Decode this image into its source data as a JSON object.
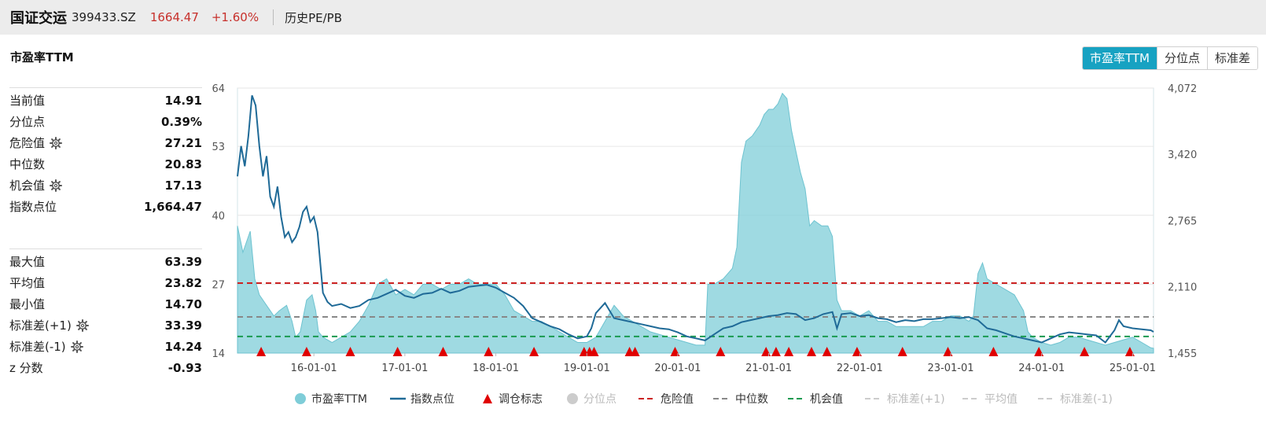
{
  "header": {
    "name": "国证交运",
    "code": "399433.SZ",
    "price": "1664.47",
    "change": "+1.60%",
    "section": "历史PE/PB"
  },
  "subtitle": "市盈率TTM",
  "tabs": [
    {
      "label": "市盈率TTM",
      "active": true
    },
    {
      "label": "分位点",
      "active": false
    },
    {
      "label": "标准差",
      "active": false
    }
  ],
  "stats_top": [
    {
      "label": "当前值",
      "value": "14.91",
      "gear": false
    },
    {
      "label": "分位点",
      "value": "0.39%",
      "gear": false
    },
    {
      "label": "危险值",
      "value": "27.21",
      "gear": true
    },
    {
      "label": "中位数",
      "value": "20.83",
      "gear": false
    },
    {
      "label": "机会值",
      "value": "17.13",
      "gear": true
    },
    {
      "label": "指数点位",
      "value": "1,664.47",
      "gear": false
    }
  ],
  "stats_bottom": [
    {
      "label": "最大值",
      "value": "63.39",
      "gear": false
    },
    {
      "label": "平均值",
      "value": "23.82",
      "gear": false
    },
    {
      "label": "最小值",
      "value": "14.70",
      "gear": false
    },
    {
      "label": "标准差(+1)",
      "value": "33.39",
      "gear": true
    },
    {
      "label": "标准差(-1)",
      "value": "14.24",
      "gear": true
    },
    {
      "label": "z 分数",
      "value": "-0.93",
      "gear": false
    }
  ],
  "legend": [
    {
      "label": "市盈率TTM",
      "kind": "circle",
      "color": "#7fcdd8",
      "dim": false
    },
    {
      "label": "指数点位",
      "kind": "line",
      "color": "#1f6a97",
      "dim": false
    },
    {
      "label": "调仓标志",
      "kind": "triangle",
      "color": "#e00000",
      "dim": false
    },
    {
      "label": "分位点",
      "kind": "circle",
      "color": "#cccccc",
      "dim": true
    },
    {
      "label": "危险值",
      "kind": "dash",
      "color": "#cc2222",
      "dim": false
    },
    {
      "label": "中位数",
      "kind": "dash",
      "color": "#888888",
      "dim": false
    },
    {
      "label": "机会值",
      "kind": "dash",
      "color": "#1a9a50",
      "dim": false
    },
    {
      "label": "标准差(+1)",
      "kind": "dash",
      "color": "#cccccc",
      "dim": true
    },
    {
      "label": "平均值",
      "kind": "dash",
      "color": "#cccccc",
      "dim": true
    },
    {
      "label": "标准差(-1)",
      "kind": "dash",
      "color": "#cccccc",
      "dim": true
    }
  ],
  "chart_data": {
    "type": "area",
    "x_range": [
      2015.16,
      2025.23
    ],
    "x_ticks": [
      {
        "label": "16-01-01",
        "x": 2016.0
      },
      {
        "label": "17-01-01",
        "x": 2017.0
      },
      {
        "label": "18-01-01",
        "x": 2018.0
      },
      {
        "label": "19-01-01",
        "x": 2019.0
      },
      {
        "label": "20-01-01",
        "x": 2020.0
      },
      {
        "label": "21-01-01",
        "x": 2021.0
      },
      {
        "label": "22-01-01",
        "x": 2022.0
      },
      {
        "label": "23-01-01",
        "x": 2023.0
      },
      {
        "label": "24-01-01",
        "x": 2024.0
      },
      {
        "label": "25-01-01",
        "x": 2025.0
      }
    ],
    "y_left": {
      "min": 14,
      "max": 64,
      "ticks": [
        "64",
        "53",
        "40",
        "27",
        "14"
      ],
      "tick_values": [
        64,
        53,
        40,
        27,
        14
      ]
    },
    "y_right": {
      "min": 1455,
      "max": 4072,
      "ticks": [
        "4,072",
        "3,420",
        "2,765",
        "2,110",
        "1,455"
      ],
      "tick_values": [
        4072,
        3420,
        2765,
        2110,
        1455
      ]
    },
    "reference_lines": [
      {
        "name": "危险值",
        "value": 27.21,
        "color": "#cc2222"
      },
      {
        "name": "中位数",
        "value": 20.83,
        "color": "#888888"
      },
      {
        "name": "机会值",
        "value": 17.13,
        "color": "#1a9a50"
      }
    ],
    "series": [
      {
        "name": "市盈率TTM",
        "axis": "left",
        "color": "#7fcdd8",
        "points": [
          [
            2015.16,
            38
          ],
          [
            2015.22,
            33
          ],
          [
            2015.3,
            37
          ],
          [
            2015.35,
            28
          ],
          [
            2015.4,
            25
          ],
          [
            2015.48,
            23
          ],
          [
            2015.56,
            21
          ],
          [
            2015.62,
            22
          ],
          [
            2015.7,
            23
          ],
          [
            2015.76,
            20
          ],
          [
            2015.8,
            17
          ],
          [
            2015.85,
            18
          ],
          [
            2015.92,
            24
          ],
          [
            2015.98,
            25
          ],
          [
            2016.02,
            22
          ],
          [
            2016.05,
            18
          ],
          [
            2016.1,
            17
          ],
          [
            2016.2,
            16
          ],
          [
            2016.3,
            17
          ],
          [
            2016.4,
            18
          ],
          [
            2016.5,
            20
          ],
          [
            2016.6,
            23
          ],
          [
            2016.7,
            27
          ],
          [
            2016.8,
            28
          ],
          [
            2016.9,
            25
          ],
          [
            2017.0,
            26
          ],
          [
            2017.1,
            25
          ],
          [
            2017.2,
            27
          ],
          [
            2017.3,
            27
          ],
          [
            2017.4,
            26
          ],
          [
            2017.5,
            27
          ],
          [
            2017.6,
            27
          ],
          [
            2017.7,
            28
          ],
          [
            2017.8,
            27
          ],
          [
            2017.9,
            27
          ],
          [
            2018.0,
            27
          ],
          [
            2018.1,
            25
          ],
          [
            2018.2,
            22
          ],
          [
            2018.3,
            21
          ],
          [
            2018.4,
            20
          ],
          [
            2018.5,
            20
          ],
          [
            2018.6,
            19
          ],
          [
            2018.7,
            18
          ],
          [
            2018.8,
            17
          ],
          [
            2018.9,
            16
          ],
          [
            2019.0,
            16
          ],
          [
            2019.1,
            17
          ],
          [
            2019.2,
            20
          ],
          [
            2019.3,
            23
          ],
          [
            2019.4,
            21
          ],
          [
            2019.5,
            20
          ],
          [
            2019.6,
            19
          ],
          [
            2019.7,
            18
          ],
          [
            2019.8,
            17.5
          ],
          [
            2019.9,
            17
          ],
          [
            2020.0,
            16.5
          ],
          [
            2020.1,
            16
          ],
          [
            2020.2,
            15.5
          ],
          [
            2020.3,
            15.5
          ],
          [
            2020.33,
            27
          ],
          [
            2020.4,
            27
          ],
          [
            2020.5,
            28
          ],
          [
            2020.6,
            30
          ],
          [
            2020.65,
            34
          ],
          [
            2020.7,
            50
          ],
          [
            2020.75,
            54
          ],
          [
            2020.82,
            55
          ],
          [
            2020.9,
            57
          ],
          [
            2020.95,
            59
          ],
          [
            2021.0,
            60
          ],
          [
            2021.05,
            60
          ],
          [
            2021.1,
            61
          ],
          [
            2021.15,
            63
          ],
          [
            2021.2,
            62
          ],
          [
            2021.25,
            56
          ],
          [
            2021.3,
            52
          ],
          [
            2021.35,
            48
          ],
          [
            2021.4,
            45
          ],
          [
            2021.45,
            38
          ],
          [
            2021.5,
            39
          ],
          [
            2021.58,
            38
          ],
          [
            2021.65,
            38
          ],
          [
            2021.7,
            36
          ],
          [
            2021.75,
            24
          ],
          [
            2021.8,
            22
          ],
          [
            2021.9,
            22
          ],
          [
            2022.0,
            21
          ],
          [
            2022.1,
            22
          ],
          [
            2022.2,
            20
          ],
          [
            2022.3,
            20
          ],
          [
            2022.4,
            19
          ],
          [
            2022.5,
            19
          ],
          [
            2022.6,
            19
          ],
          [
            2022.7,
            19
          ],
          [
            2022.8,
            20
          ],
          [
            2022.9,
            20
          ],
          [
            2023.0,
            21
          ],
          [
            2023.1,
            21
          ],
          [
            2023.2,
            20
          ],
          [
            2023.25,
            21
          ],
          [
            2023.3,
            29
          ],
          [
            2023.35,
            31
          ],
          [
            2023.4,
            28
          ],
          [
            2023.5,
            27
          ],
          [
            2023.6,
            26
          ],
          [
            2023.7,
            25
          ],
          [
            2023.8,
            22
          ],
          [
            2023.85,
            18
          ],
          [
            2023.9,
            17
          ],
          [
            2024.0,
            16
          ],
          [
            2024.1,
            15.5
          ],
          [
            2024.2,
            16
          ],
          [
            2024.3,
            17
          ],
          [
            2024.4,
            17
          ],
          [
            2024.5,
            16.5
          ],
          [
            2024.6,
            16
          ],
          [
            2024.7,
            15.5
          ],
          [
            2024.8,
            16
          ],
          [
            2024.9,
            16.5
          ],
          [
            2025.0,
            17
          ],
          [
            2025.1,
            16
          ],
          [
            2025.2,
            15
          ],
          [
            2025.23,
            14.9
          ]
        ]
      },
      {
        "name": "指数点位",
        "axis": "right",
        "color": "#1f6a97",
        "points": [
          [
            2015.16,
            3200
          ],
          [
            2015.2,
            3500
          ],
          [
            2015.24,
            3300
          ],
          [
            2015.28,
            3600
          ],
          [
            2015.32,
            4000
          ],
          [
            2015.36,
            3900
          ],
          [
            2015.4,
            3500
          ],
          [
            2015.44,
            3200
          ],
          [
            2015.48,
            3400
          ],
          [
            2015.52,
            3000
          ],
          [
            2015.56,
            2900
          ],
          [
            2015.6,
            3100
          ],
          [
            2015.64,
            2800
          ],
          [
            2015.68,
            2600
          ],
          [
            2015.72,
            2650
          ],
          [
            2015.76,
            2550
          ],
          [
            2015.8,
            2600
          ],
          [
            2015.84,
            2700
          ],
          [
            2015.88,
            2850
          ],
          [
            2015.92,
            2900
          ],
          [
            2015.96,
            2750
          ],
          [
            2016.0,
            2800
          ],
          [
            2016.04,
            2650
          ],
          [
            2016.08,
            2250
          ],
          [
            2016.1,
            2050
          ],
          [
            2016.15,
            1960
          ],
          [
            2016.2,
            1920
          ],
          [
            2016.3,
            1940
          ],
          [
            2016.4,
            1900
          ],
          [
            2016.5,
            1920
          ],
          [
            2016.6,
            1980
          ],
          [
            2016.7,
            2000
          ],
          [
            2016.8,
            2040
          ],
          [
            2016.9,
            2080
          ],
          [
            2017.0,
            2020
          ],
          [
            2017.1,
            2000
          ],
          [
            2017.2,
            2040
          ],
          [
            2017.3,
            2050
          ],
          [
            2017.4,
            2090
          ],
          [
            2017.5,
            2050
          ],
          [
            2017.6,
            2070
          ],
          [
            2017.7,
            2110
          ],
          [
            2017.8,
            2120
          ],
          [
            2017.9,
            2130
          ],
          [
            2018.0,
            2100
          ],
          [
            2018.1,
            2050
          ],
          [
            2018.2,
            2000
          ],
          [
            2018.3,
            1920
          ],
          [
            2018.4,
            1800
          ],
          [
            2018.5,
            1760
          ],
          [
            2018.6,
            1720
          ],
          [
            2018.7,
            1690
          ],
          [
            2018.8,
            1640
          ],
          [
            2018.9,
            1600
          ],
          [
            2019.0,
            1620
          ],
          [
            2019.05,
            1700
          ],
          [
            2019.1,
            1850
          ],
          [
            2019.2,
            1950
          ],
          [
            2019.3,
            1800
          ],
          [
            2019.4,
            1780
          ],
          [
            2019.5,
            1760
          ],
          [
            2019.6,
            1740
          ],
          [
            2019.7,
            1720
          ],
          [
            2019.8,
            1700
          ],
          [
            2019.9,
            1690
          ],
          [
            2020.0,
            1660
          ],
          [
            2020.1,
            1620
          ],
          [
            2020.2,
            1600
          ],
          [
            2020.3,
            1580
          ],
          [
            2020.4,
            1640
          ],
          [
            2020.5,
            1700
          ],
          [
            2020.6,
            1720
          ],
          [
            2020.7,
            1760
          ],
          [
            2020.8,
            1780
          ],
          [
            2020.9,
            1800
          ],
          [
            2021.0,
            1820
          ],
          [
            2021.1,
            1830
          ],
          [
            2021.2,
            1850
          ],
          [
            2021.3,
            1840
          ],
          [
            2021.4,
            1780
          ],
          [
            2021.5,
            1800
          ],
          [
            2021.6,
            1840
          ],
          [
            2021.7,
            1860
          ],
          [
            2021.75,
            1700
          ],
          [
            2021.8,
            1840
          ],
          [
            2021.9,
            1850
          ],
          [
            2022.0,
            1820
          ],
          [
            2022.1,
            1830
          ],
          [
            2022.2,
            1800
          ],
          [
            2022.3,
            1790
          ],
          [
            2022.4,
            1760
          ],
          [
            2022.5,
            1780
          ],
          [
            2022.6,
            1770
          ],
          [
            2022.7,
            1790
          ],
          [
            2022.8,
            1790
          ],
          [
            2022.9,
            1800
          ],
          [
            2023.0,
            1810
          ],
          [
            2023.1,
            1800
          ],
          [
            2023.2,
            1810
          ],
          [
            2023.3,
            1780
          ],
          [
            2023.4,
            1700
          ],
          [
            2023.5,
            1680
          ],
          [
            2023.6,
            1650
          ],
          [
            2023.7,
            1620
          ],
          [
            2023.8,
            1600
          ],
          [
            2023.9,
            1580
          ],
          [
            2024.0,
            1560
          ],
          [
            2024.1,
            1600
          ],
          [
            2024.2,
            1640
          ],
          [
            2024.3,
            1660
          ],
          [
            2024.4,
            1650
          ],
          [
            2024.5,
            1640
          ],
          [
            2024.6,
            1630
          ],
          [
            2024.7,
            1560
          ],
          [
            2024.8,
            1680
          ],
          [
            2024.85,
            1780
          ],
          [
            2024.9,
            1720
          ],
          [
            2025.0,
            1700
          ],
          [
            2025.1,
            1690
          ],
          [
            2025.2,
            1680
          ],
          [
            2025.23,
            1664.47
          ]
        ]
      }
    ],
    "markers": {
      "name": "调仓标志",
      "color": "#e00000",
      "x": [
        2015.42,
        2015.92,
        2016.4,
        2016.92,
        2017.42,
        2017.92,
        2018.42,
        2018.97,
        2019.03,
        2019.08,
        2019.47,
        2019.53,
        2019.97,
        2020.47,
        2020.97,
        2021.08,
        2021.22,
        2021.47,
        2021.64,
        2021.97,
        2022.47,
        2022.97,
        2023.47,
        2023.97,
        2024.47,
        2024.97
      ]
    }
  }
}
